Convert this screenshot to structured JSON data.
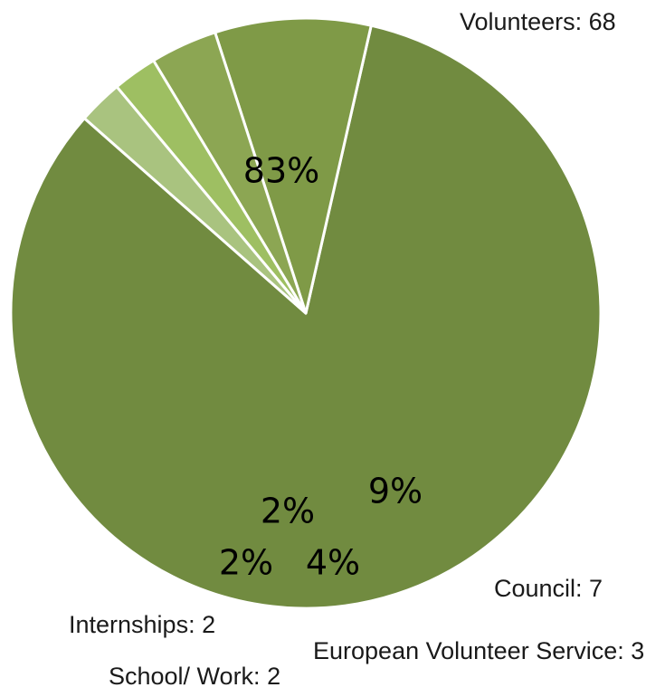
{
  "chart_data": {
    "type": "pie",
    "title": "",
    "slices": [
      {
        "label": "Volunteers",
        "value": 68,
        "label_text": "Volunteers: 68",
        "percent_text": "83%",
        "color": "#718b40"
      },
      {
        "label": "Council",
        "value": 7,
        "label_text": "Council: 7",
        "percent_text": "9%",
        "color": "#7f9a47"
      },
      {
        "label": "European Volunteer Service",
        "value": 3,
        "label_text": "European Volunteer Service: 3",
        "percent_text": "4%",
        "color": "#8ca653"
      },
      {
        "label": "School/ Work",
        "value": 2,
        "label_text": "School/ Work: 2",
        "percent_text": "2%",
        "color": "#9ebf62"
      },
      {
        "label": "Internships",
        "value": 2,
        "label_text": "Internships: 2",
        "percent_text": "2%",
        "color": "#a9c37f"
      }
    ],
    "legend": "none",
    "data_labels": "category-and-value outside, percent inside"
  }
}
